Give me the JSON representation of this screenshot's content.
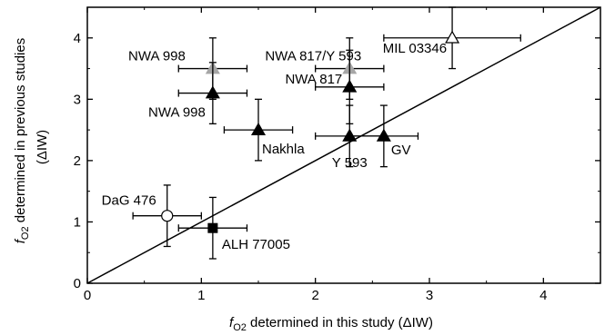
{
  "chart_data": {
    "type": "scatter",
    "xlabel": {
      "var": "f",
      "sub": "O2",
      "rest": " determined in this study (ΔIW)"
    },
    "ylabel": {
      "var": "f",
      "sub": "O2",
      "rest": " determined in previous studies",
      "line2": "(ΔIW)"
    },
    "xlim": [
      0,
      4.5
    ],
    "ylim": [
      0,
      4.5
    ],
    "xticks": [
      0,
      1,
      2,
      3,
      4
    ],
    "yticks": [
      0,
      1,
      2,
      3,
      4
    ],
    "reference_line": "1:1",
    "colors": {
      "black": "#000000",
      "gray": "#a6a6a6",
      "open": "#ffffff"
    },
    "points": [
      {
        "label": "NWA 998",
        "x": 1.1,
        "y": 3.5,
        "xerr": 0.3,
        "yerr": 0.5,
        "marker": "triangle",
        "color": "gray"
      },
      {
        "label": "NWA 817/Y 593",
        "x": 2.3,
        "y": 3.5,
        "xerr": 0.3,
        "yerr": 0.5,
        "marker": "triangle",
        "color": "gray"
      },
      {
        "label": "NWA 998",
        "x": 1.1,
        "y": 3.1,
        "xerr": 0.3,
        "yerr": 0.5,
        "marker": "triangle",
        "color": "black"
      },
      {
        "label": "NWA 817",
        "x": 2.3,
        "y": 3.2,
        "xerr": 0.3,
        "yerr": 0.6,
        "marker": "triangle",
        "color": "black"
      },
      {
        "label": "Nakhla",
        "x": 1.5,
        "y": 2.5,
        "xerr": 0.3,
        "yerr": 0.5,
        "marker": "triangle",
        "color": "black"
      },
      {
        "label": "Y 593",
        "x": 2.3,
        "y": 2.4,
        "xerr": 0.3,
        "yerr": 0.5,
        "marker": "triangle",
        "color": "black"
      },
      {
        "label": "GV",
        "x": 2.6,
        "y": 2.4,
        "xerr": 0.3,
        "yerr": 0.5,
        "marker": "triangle",
        "color": "black"
      },
      {
        "label": "MIL 03346",
        "x": 3.2,
        "y": 4.0,
        "xerr": 0.6,
        "yerr": 0.5,
        "marker": "triangle",
        "color": "open"
      },
      {
        "label": "DaG 476",
        "x": 0.7,
        "y": 1.1,
        "xerr": 0.3,
        "yerr": 0.5,
        "marker": "circle",
        "color": "open"
      },
      {
        "label": "ALH 77005",
        "x": 1.1,
        "y": 0.9,
        "xerr": 0.3,
        "yerr": 0.5,
        "marker": "square",
        "color": "black"
      }
    ]
  }
}
